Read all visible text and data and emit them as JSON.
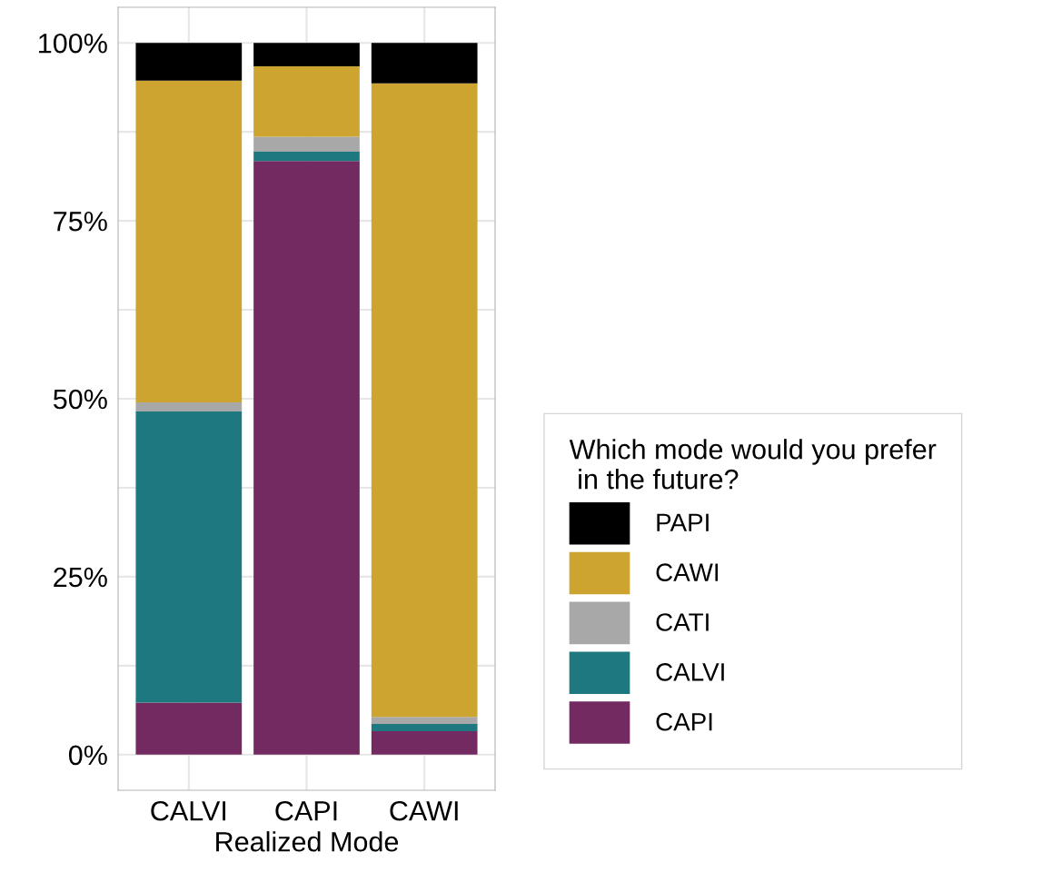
{
  "chart_data": {
    "type": "bar",
    "stacked": true,
    "xlabel": "Realized Mode",
    "legend_title": "Which mode would you prefer\n in the future?",
    "categories": [
      "CALVI",
      "CAPI",
      "CAWI"
    ],
    "series": [
      {
        "name": "CAPI",
        "color": "#722a60",
        "values": [
          7.3,
          83.4,
          3.3
        ]
      },
      {
        "name": "CALVI",
        "color": "#1d7880",
        "values": [
          40.9,
          1.3,
          1.0
        ]
      },
      {
        "name": "CATI",
        "color": "#a8a8a8",
        "values": [
          1.3,
          2.1,
          1.0
        ]
      },
      {
        "name": "CAWI",
        "color": "#cca42f",
        "values": [
          45.2,
          9.9,
          89.0
        ]
      },
      {
        "name": "PAPI",
        "color": "#000000",
        "values": [
          5.3,
          3.3,
          5.7
        ]
      }
    ],
    "ylim": [
      -5,
      105
    ],
    "yticks": [
      {
        "value": 0,
        "label": "0%"
      },
      {
        "value": 12.5,
        "label": null
      },
      {
        "value": 25,
        "label": "25%"
      },
      {
        "value": 37.5,
        "label": null
      },
      {
        "value": 50,
        "label": "50%"
      },
      {
        "value": 62.5,
        "label": null
      },
      {
        "value": 75,
        "label": "75%"
      },
      {
        "value": 87.5,
        "label": null
      },
      {
        "value": 100,
        "label": "100%"
      }
    ],
    "grid": true,
    "legend": "right"
  }
}
